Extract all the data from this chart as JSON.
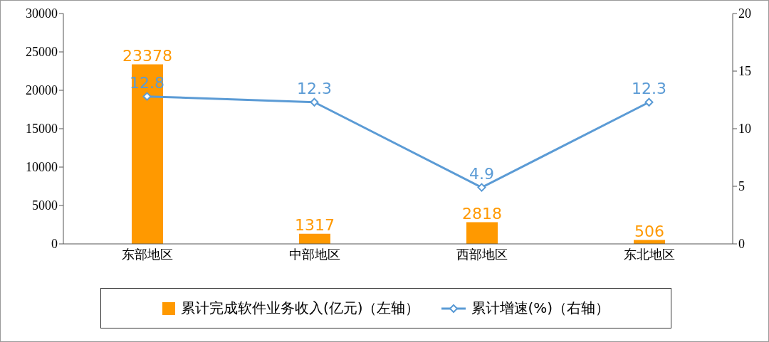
{
  "chart_data": {
    "type": "bar",
    "categories": [
      "东部地区",
      "中部地区",
      "西部地区",
      "东北地区"
    ],
    "series": [
      {
        "name": "累计完成软件业务收入(亿元)（左轴）",
        "color": "#ff9900",
        "values": [
          23378,
          1317,
          2818,
          506
        ]
      },
      {
        "name": "累计增速(%)（右轴）",
        "type": "line",
        "axis": "y2",
        "color": "#5b9bd5",
        "values": [
          12.8,
          12.3,
          4.9,
          12.3
        ]
      }
    ],
    "ylim": [
      0,
      30000
    ],
    "yticks": [
      0,
      5000,
      10000,
      15000,
      20000,
      25000,
      30000
    ],
    "y2lim": [
      0,
      20
    ],
    "y2ticks": [
      0,
      5,
      10,
      15,
      20
    ],
    "data_labels": true,
    "grid": false,
    "legend": "bottom",
    "marker": "diamond",
    "line_style": "solid"
  }
}
